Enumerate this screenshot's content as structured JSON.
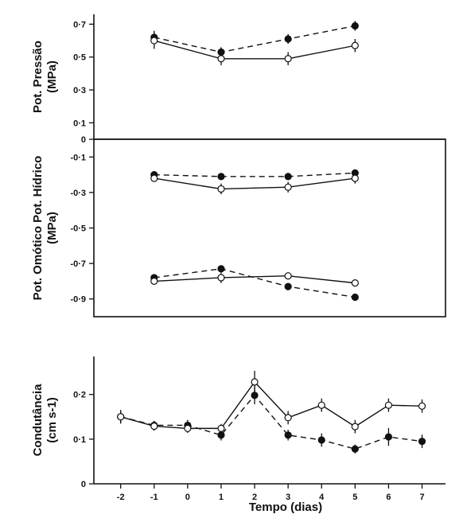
{
  "chart_data": [
    {
      "type": "line",
      "panel": "top",
      "ylabel": [
        "Pot. Pressão",
        "(MPa)"
      ],
      "ylim": [
        0,
        0.76
      ],
      "yticks": [
        0,
        0.1,
        0.3,
        0.5,
        0.7
      ],
      "ytick_labels": [
        "0",
        "0·1",
        "0·3",
        "0·5",
        "0·7"
      ],
      "x": [
        -1,
        1,
        3,
        5
      ],
      "series": [
        {
          "marker": "filled",
          "line": "dashed",
          "values": [
            0.62,
            0.53,
            0.61,
            0.69
          ],
          "err": [
            0.04,
            0.03,
            0.03,
            0.03
          ]
        },
        {
          "marker": "open",
          "line": "solid",
          "values": [
            0.6,
            0.49,
            0.49,
            0.57
          ],
          "err": [
            0.05,
            0.04,
            0.04,
            0.04
          ]
        }
      ]
    },
    {
      "type": "line",
      "panel": "middle",
      "ylabel": [
        "Pot. Omótico Pot. Hídrico",
        "(MPa)"
      ],
      "ylim": [
        -1.0,
        0
      ],
      "yticks": [
        -0.1,
        -0.3,
        -0.5,
        -0.7,
        -0.9
      ],
      "ytick_labels": [
        "-0·1",
        "-0·3",
        "-0·5",
        "-0·7",
        "-0·9"
      ],
      "x": [
        -1,
        1,
        3,
        5
      ],
      "series": [
        {
          "group": "Pot. Hídrico",
          "marker": "filled",
          "line": "dashed",
          "values": [
            -0.2,
            -0.21,
            -0.21,
            -0.19
          ],
          "err": [
            0.02,
            0.02,
            0.02,
            0.01
          ]
        },
        {
          "group": "Pot. Hídrico",
          "marker": "open",
          "line": "solid",
          "values": [
            -0.22,
            -0.28,
            -0.27,
            -0.22
          ],
          "err": [
            0.02,
            0.03,
            0.03,
            0.03
          ]
        },
        {
          "group": "Pot. Omótico",
          "marker": "filled",
          "line": "dashed",
          "values": [
            -0.78,
            -0.73,
            -0.83,
            -0.89
          ],
          "err": [
            0.02,
            0.02,
            0.01,
            0.01
          ]
        },
        {
          "group": "Pot. Omótico",
          "marker": "open",
          "line": "solid",
          "values": [
            -0.8,
            -0.78,
            -0.77,
            -0.81
          ],
          "err": [
            0.02,
            0.03,
            0.02,
            0.02
          ]
        }
      ]
    },
    {
      "type": "line",
      "panel": "bottom",
      "ylabel": [
        "Condutância",
        "(cm s-1)"
      ],
      "xlabel": "Tempo (dias)",
      "ylim": [
        0,
        0.285
      ],
      "xlim": [
        -2.8,
        7.7
      ],
      "yticks": [
        0,
        0.1,
        0.2
      ],
      "ytick_labels": [
        "0",
        "0·1",
        "0·2"
      ],
      "xticks": [
        -2,
        -1,
        0,
        1,
        2,
        3,
        4,
        5,
        6,
        7
      ],
      "xtick_labels": [
        "-2",
        "-1",
        "0",
        "1",
        "2",
        "3",
        "4",
        "5",
        "6",
        "7"
      ],
      "x": [
        -2,
        -1,
        0,
        1,
        2,
        3,
        4,
        5,
        6,
        7
      ],
      "series": [
        {
          "marker": "filled",
          "line": "dashed",
          "values": [
            0.15,
            0.131,
            0.131,
            0.109,
            0.198,
            0.109,
            0.098,
            0.078,
            0.105,
            0.095
          ],
          "err": [
            0.015,
            0.01,
            0.012,
            0.012,
            0.02,
            0.012,
            0.015,
            0.01,
            0.02,
            0.015
          ]
        },
        {
          "marker": "open",
          "line": "solid",
          "values": [
            0.15,
            0.129,
            0.124,
            0.124,
            0.228,
            0.148,
            0.176,
            0.128,
            0.176,
            0.174
          ],
          "err": [
            0.015,
            0.01,
            0.01,
            0.01,
            0.025,
            0.015,
            0.015,
            0.015,
            0.015,
            0.015
          ]
        }
      ]
    }
  ]
}
